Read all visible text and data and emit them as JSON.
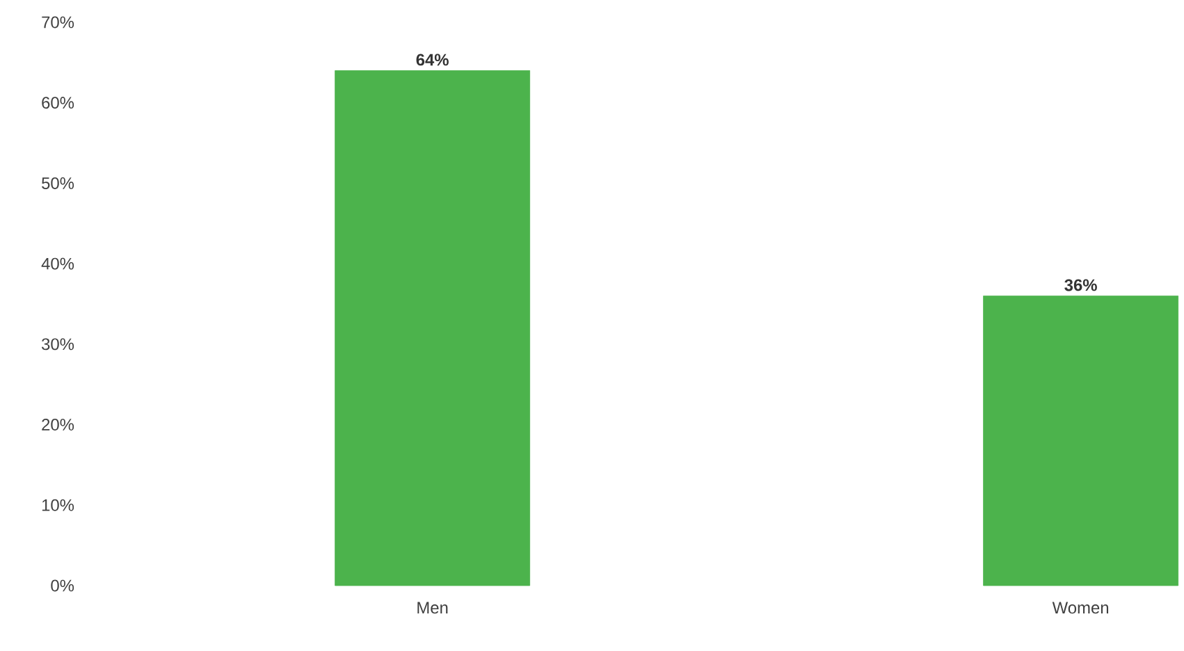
{
  "chart_data": {
    "type": "bar",
    "categories": [
      "Men",
      "Women"
    ],
    "values": [
      64,
      36
    ],
    "color": "#4cb34c",
    "value_labels": [
      "64%",
      "36%"
    ],
    "ylim": [
      0,
      70
    ],
    "yticks": [
      {
        "value": 0,
        "label": "0%"
      },
      {
        "value": 10,
        "label": "10%"
      },
      {
        "value": 20,
        "label": "20%"
      },
      {
        "value": 30,
        "label": "30%"
      },
      {
        "value": 40,
        "label": "40%"
      },
      {
        "value": 50,
        "label": "50%"
      },
      {
        "value": 60,
        "label": "60%"
      },
      {
        "value": 70,
        "label": "70%"
      }
    ],
    "grid": false
  }
}
